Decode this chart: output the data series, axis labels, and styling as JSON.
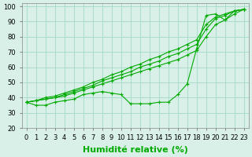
{
  "title": "",
  "xlabel": "Humidité relative (%)",
  "ylabel": "",
  "bg_color": "#d8f0e8",
  "grid_color": "#aaddcc",
  "line_color": "#00aa00",
  "marker": "+",
  "x": [
    0,
    1,
    2,
    3,
    4,
    5,
    6,
    7,
    8,
    9,
    10,
    11,
    12,
    13,
    14,
    15,
    16,
    17,
    18,
    19,
    20,
    21,
    22,
    23
  ],
  "series": [
    [
      37,
      35,
      35,
      37,
      38,
      39,
      42,
      43,
      44,
      43,
      42,
      36,
      36,
      36,
      37,
      37,
      42,
      49,
      72,
      94,
      95,
      91,
      97,
      98
    ],
    [
      37,
      38,
      39,
      40,
      41,
      43,
      45,
      47,
      49,
      51,
      53,
      55,
      57,
      59,
      61,
      63,
      65,
      68,
      71,
      80,
      88,
      91,
      95,
      98
    ],
    [
      37,
      38,
      39,
      40,
      42,
      44,
      46,
      48,
      51,
      53,
      55,
      57,
      60,
      62,
      64,
      67,
      69,
      72,
      75,
      85,
      92,
      94,
      97,
      98
    ],
    [
      37,
      38,
      40,
      41,
      43,
      45,
      47,
      50,
      52,
      55,
      57,
      60,
      62,
      65,
      67,
      70,
      72,
      75,
      78,
      88,
      93,
      95,
      97,
      98
    ]
  ],
  "ylim": [
    20,
    102
  ],
  "xlim": [
    -0.5,
    23.5
  ],
  "yticks": [
    20,
    30,
    40,
    50,
    60,
    70,
    80,
    90,
    100
  ],
  "xticks": [
    0,
    1,
    2,
    3,
    4,
    5,
    6,
    7,
    8,
    9,
    10,
    11,
    12,
    13,
    14,
    15,
    16,
    17,
    18,
    19,
    20,
    21,
    22,
    23
  ],
  "tick_fontsize": 6,
  "xlabel_fontsize": 8,
  "xlabel_bold": true
}
